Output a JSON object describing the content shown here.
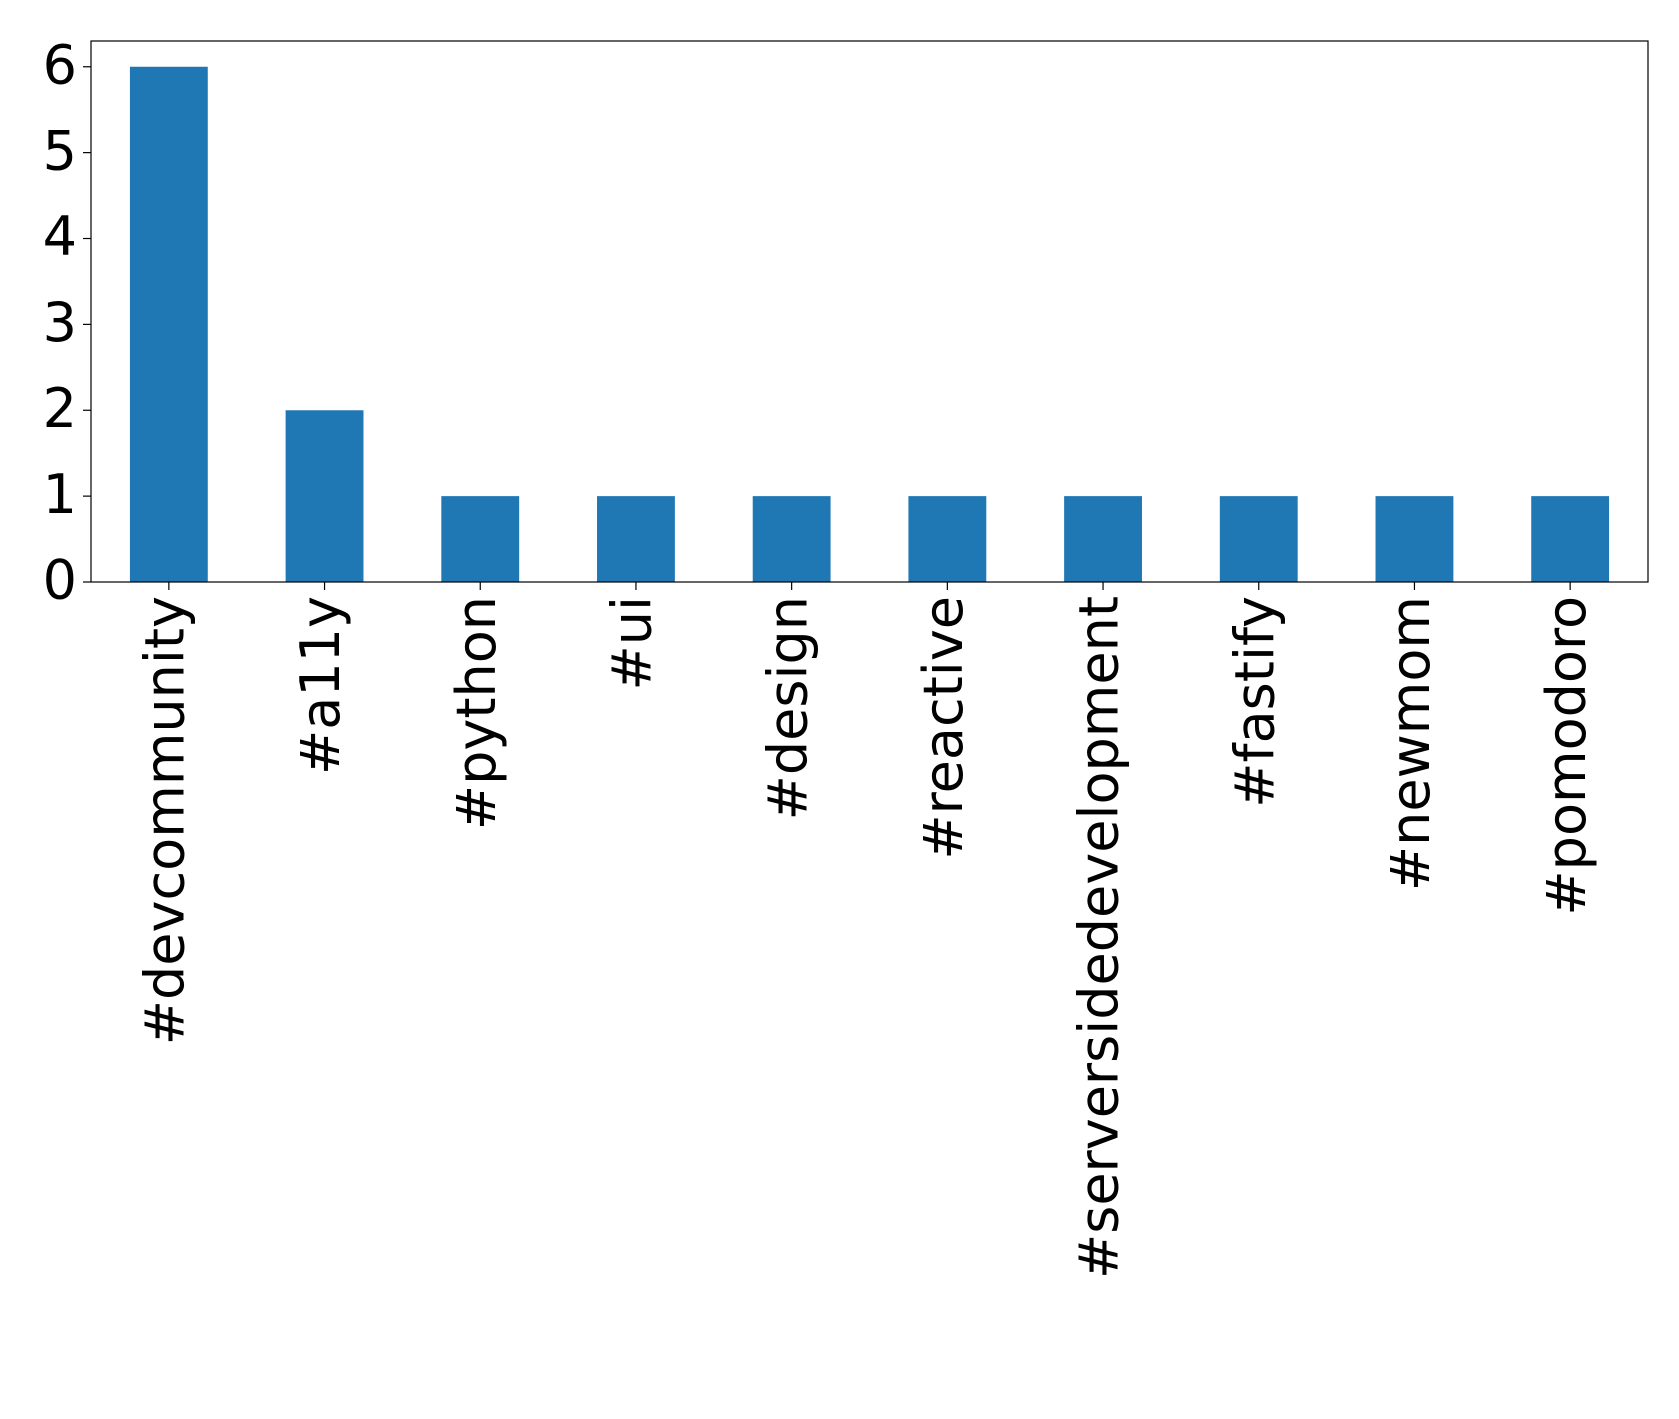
{
  "chart_data": {
    "type": "bar",
    "categories": [
      "#devcommunity",
      "#a11y",
      "#python",
      "#ui",
      "#design",
      "#reactive",
      "#serversidedevelopment",
      "#fastify",
      "#newmom",
      "#pomodoro"
    ],
    "values": [
      6,
      2,
      1,
      1,
      1,
      1,
      1,
      1,
      1,
      1
    ],
    "color": "#1f77b4",
    "ylim": [
      0,
      6.3
    ],
    "yticks": [
      0,
      1,
      2,
      3,
      4,
      5,
      6
    ],
    "grid": false
  }
}
